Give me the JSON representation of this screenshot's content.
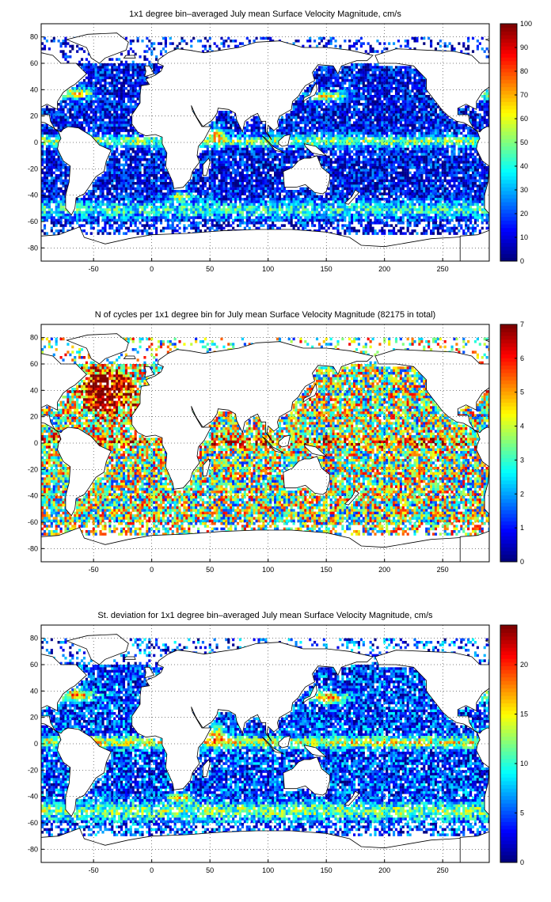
{
  "figure": {
    "panels": [
      {
        "id": "mean",
        "title": "1x1 degree bin–averaged July mean Surface Velocity Magnitude, cm/s",
        "xticks": [
          "-50",
          "0",
          "50",
          "100",
          "150",
          "200",
          "250"
        ],
        "yticks": [
          "80",
          "60",
          "40",
          "20",
          "0",
          "-20",
          "-40",
          "-60",
          "-80"
        ],
        "colorbar_ticks": [
          "0",
          "10",
          "20",
          "30",
          "40",
          "50",
          "60",
          "70",
          "80",
          "90",
          "100"
        ],
        "colorbar_range": [
          0,
          100
        ]
      },
      {
        "id": "count",
        "title": "N of cycles per 1x1 degree bin for July mean Surface Velocity Magnitude (82175 in total)",
        "xticks": [
          "-50",
          "0",
          "50",
          "100",
          "150",
          "200",
          "250"
        ],
        "yticks": [
          "80",
          "60",
          "40",
          "20",
          "0",
          "-20",
          "-40",
          "-60",
          "-80"
        ],
        "colorbar_ticks": [
          "0",
          "1",
          "2",
          "3",
          "4",
          "5",
          "6",
          "7"
        ],
        "colorbar_range": [
          0,
          7
        ]
      },
      {
        "id": "stdev",
        "title": "St. deviation for 1x1 degree bin–averaged July mean Surface Velocity Magnitude, cm/s",
        "xticks": [
          "-50",
          "0",
          "50",
          "100",
          "150",
          "200",
          "250"
        ],
        "yticks": [
          "80",
          "60",
          "40",
          "20",
          "0",
          "-20",
          "-40",
          "-60",
          "-80"
        ],
        "colorbar_ticks": [
          "0",
          "5",
          "10",
          "15",
          "20"
        ],
        "colorbar_range": [
          0,
          24
        ]
      }
    ]
  },
  "map_extent": {
    "lon": [
      -95,
      290
    ],
    "lat": [
      -90,
      90
    ]
  },
  "colormap": "jet",
  "grid": "dotted"
}
